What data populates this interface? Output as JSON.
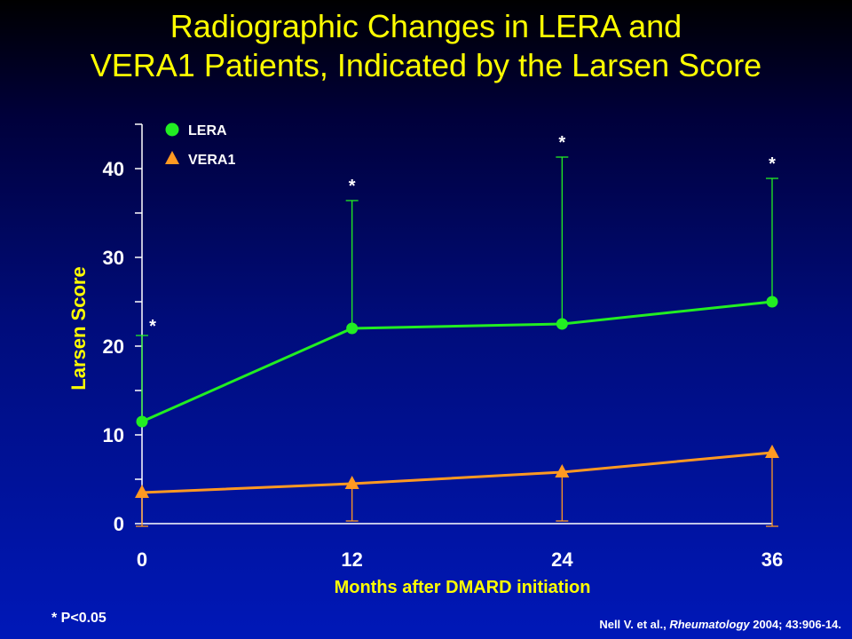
{
  "title_line1": "Radiographic Changes in LERA and",
  "title_line2": "VERA1 Patients, Indicated by the Larsen Score",
  "footnote": "* P<0.05",
  "citation": {
    "author": "Nell V. et al., ",
    "journal": "Rheumatology",
    "details": " 2004; 43:906-14."
  },
  "colors": {
    "title": "#ffff00",
    "lera": "#22ee22",
    "vera1": "#ff9922",
    "axis_label": "#ffff00",
    "axis": "#ffffff"
  },
  "chart_data": {
    "type": "line",
    "x": [
      0,
      12,
      24,
      36
    ],
    "xlabel": "Months after DMARD initiation",
    "ylabel": "Larsen Score",
    "xlim": [
      0,
      36
    ],
    "ylim": [
      0,
      45
    ],
    "yticks": [
      0,
      10,
      20,
      30,
      40
    ],
    "ytick_minor": 5,
    "legend_position": "top-left",
    "series": [
      {
        "name": "LERA",
        "marker": "circle",
        "values": [
          11.5,
          22,
          22.5,
          25
        ],
        "error_upper": [
          21.2,
          36.4,
          41.3,
          38.9
        ]
      },
      {
        "name": "VERA1",
        "marker": "triangle",
        "values": [
          3.5,
          4.5,
          5.8,
          8
        ],
        "error_lower": [
          -0.3,
          0.3,
          0.3,
          -0.3
        ]
      }
    ],
    "annotations": [
      {
        "x": 0,
        "text": "*"
      },
      {
        "x": 12,
        "text": "*"
      },
      {
        "x": 24,
        "text": "*"
      },
      {
        "x": 36,
        "text": "*"
      }
    ]
  }
}
